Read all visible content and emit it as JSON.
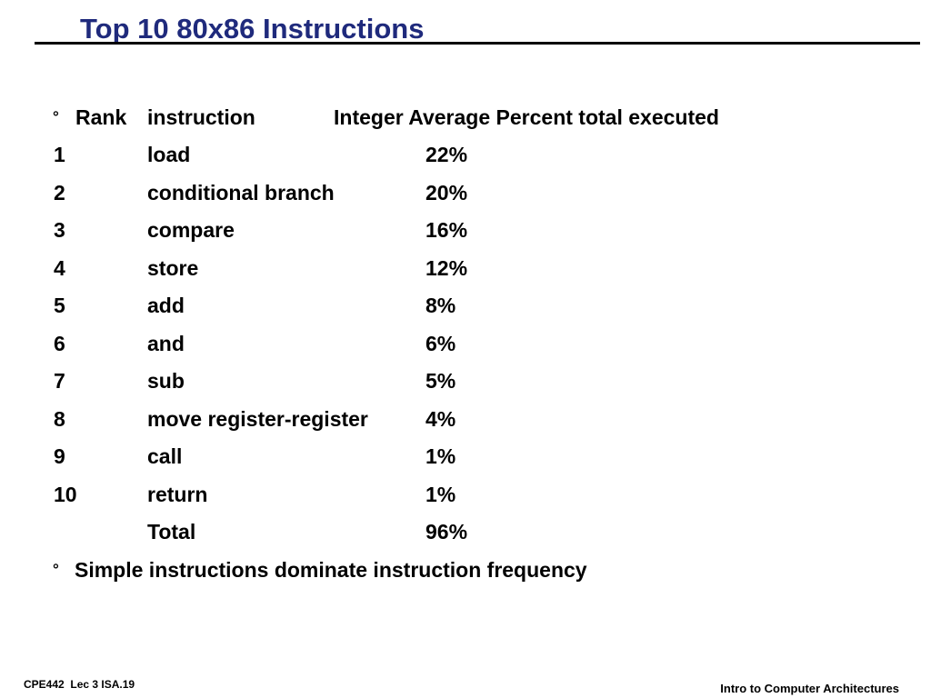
{
  "slide": {
    "title": "Top 10 80x86 Instructions",
    "accent_color": "#1f2a7c"
  },
  "table": {
    "bullet": "°",
    "headers": {
      "rank": "Rank",
      "instruction": "instruction",
      "percent": "Integer Average Percent total executed"
    },
    "rows": [
      {
        "rank": "1",
        "instruction": "load",
        "percent": "22%"
      },
      {
        "rank": "2",
        "instruction": "conditional branch",
        "percent": "20%"
      },
      {
        "rank": "3",
        "instruction": "compare",
        "percent": "16%"
      },
      {
        "rank": "4",
        "instruction": "store",
        "percent": "12%"
      },
      {
        "rank": "5",
        "instruction": "add",
        "percent": "8%"
      },
      {
        "rank": "6",
        "instruction": "and",
        "percent": "6%"
      },
      {
        "rank": "7",
        "instruction": "sub",
        "percent": "5%"
      },
      {
        "rank": "8",
        "instruction": "move register-register",
        "percent": "4%"
      },
      {
        "rank": "9",
        "instruction": "call",
        "percent": "1%"
      },
      {
        "rank": "10",
        "instruction": "return",
        "percent": "1%"
      }
    ],
    "total": {
      "label": "Total",
      "percent": "96%"
    }
  },
  "conclusion": {
    "bullet": "°",
    "text": "Simple instructions dominate instruction frequency"
  },
  "footer": {
    "left": "CPE442  Lec 3 ISA.19",
    "right": "Intro to Computer Architectures"
  }
}
